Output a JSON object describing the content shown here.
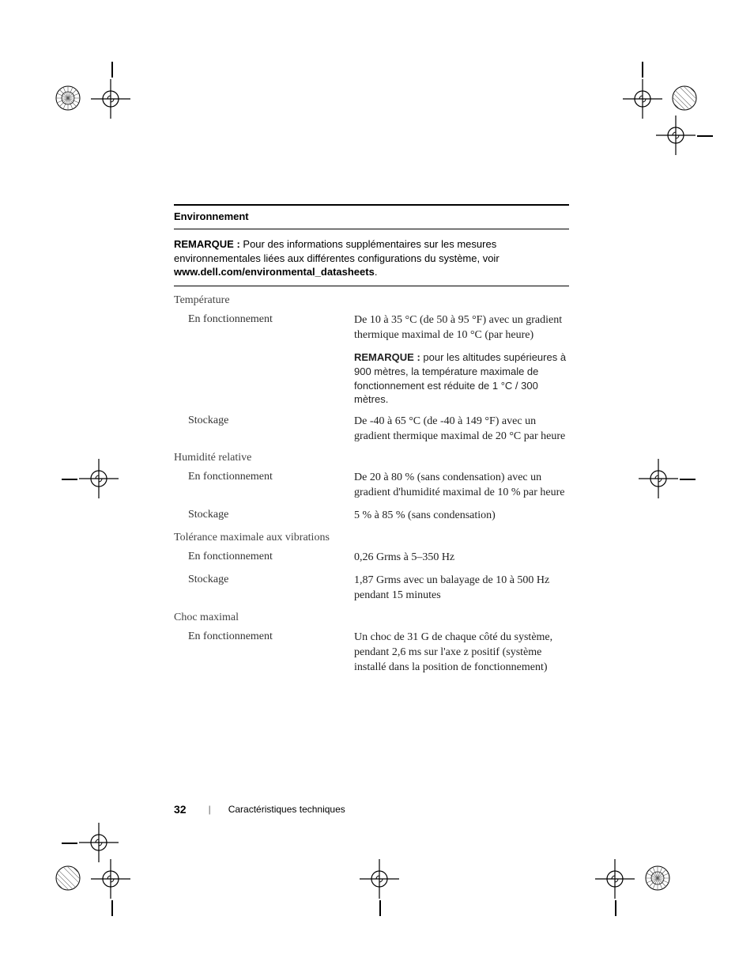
{
  "section_title": "Environnement",
  "top_note": {
    "label": "REMARQUE :",
    "text": " Pour des informations supplémentaires sur les mesures environnementales liées aux différentes configurations du système, voir ",
    "url": "www.dell.com/environmental_datasheets",
    "trailing": "."
  },
  "groups": [
    {
      "heading": "Température",
      "rows": [
        {
          "label": "En fonctionnement",
          "value": "De 10 à 35 °C (de 50 à 95 °F) avec un gradient thermique maximal de 10 °C (par heure)"
        },
        {
          "label": "",
          "value_sans": true,
          "note_label": "REMARQUE :",
          "note_text": " pour les altitudes supérieures à 900 mètres, la température maximale de fonctionnement est réduite de 1 °C / 300 mètres."
        },
        {
          "label": "Stockage",
          "value": "De -40 à 65 °C (de -40 à 149 °F) avec un gradient thermique maximal de 20 °C par heure"
        }
      ]
    },
    {
      "heading": "Humidité relative",
      "rows": [
        {
          "label": "En fonctionnement",
          "value": "De 20 à 80 % (sans condensation) avec un gradient d'humidité maximal de 10 % par heure"
        },
        {
          "label": "Stockage",
          "value": "5 % à 85 % (sans condensation)"
        }
      ]
    },
    {
      "heading": "Tolérance maximale aux vibrations",
      "rows": [
        {
          "label": "En fonctionnement",
          "value": "0,26 Grms à 5–350 Hz"
        },
        {
          "label": "Stockage",
          "value": "1,87 Grms avec un balayage de 10 à 500 Hz pendant 15 minutes"
        }
      ]
    },
    {
      "heading": "Choc maximal",
      "rows": [
        {
          "label": "En fonctionnement",
          "value": "Un choc de 31 G de chaque côté du système, pendant 2,6 ms sur l'axe z positif (système installé dans la position de fonctionnement)"
        }
      ]
    }
  ],
  "footer": {
    "page_number": "32",
    "separator": "|",
    "section": "Caractéristiques techniques"
  },
  "svg": {
    "crosshair": "<svg viewBox='0 0 50 50'><circle cx='25' cy='25' r='10' fill='none' stroke='#000' stroke-width='1.2'/><line x1='25' y1='0' x2='25' y2='50' stroke='#000' stroke-width='1.2'/><line x1='0' y1='25' x2='50' y2='25' stroke='#000' stroke-width='1.2'/><path d='M21 25 A4 4 0 0 1 25 21' fill='none' stroke='#000' stroke-width='1'/><path d='M29 25 A4 4 0 0 1 25 29' fill='none' stroke='#000' stroke-width='1'/></svg>",
    "circle_hatched": "<svg viewBox='0 0 32 32'><defs><clipPath id='cp'><circle cx='16' cy='16' r='15'/></clipPath></defs><circle cx='16' cy='16' r='15' fill='none' stroke='#000' stroke-width='1'/><g clip-path='url(#cp)' stroke='#666' stroke-width='0.6'><line x1='-4' y1='4' x2='28' y2='36'/><line x1='-4' y1='-2' x2='34' y2='36'/><line x1='-4' y1='10' x2='22' y2='36'/><line x1='-4' y1='16' x2='16' y2='36'/><line x1='4' y1='-4' x2='36' y2='28'/><line x1='10' y1='-4' x2='36' y2='22'/><line x1='16' y1='-4' x2='36' y2='16'/></g></svg>",
    "circle_radial": "<svg viewBox='0 0 32 32'><circle cx='16' cy='16' r='15' fill='none' stroke='#000' stroke-width='1'/><circle cx='16' cy='16' r='8' fill='none' stroke='#000' stroke-width='0.8'/><g stroke='#555' stroke-width='0.6'><line x1='16' y1='1' x2='16' y2='31'/><line x1='1' y1='16' x2='31' y2='16'/><line x1='5' y1='5' x2='27' y2='27'/><line x1='27' y1='5' x2='5' y2='27'/><line x1='10' y1='2' x2='22' y2='30'/><line x1='22' y1='2' x2='10' y2='30'/><line x1='2' y1='10' x2='30' y2='22'/><line x1='2' y1='22' x2='30' y2='10'/></g></svg>"
  }
}
